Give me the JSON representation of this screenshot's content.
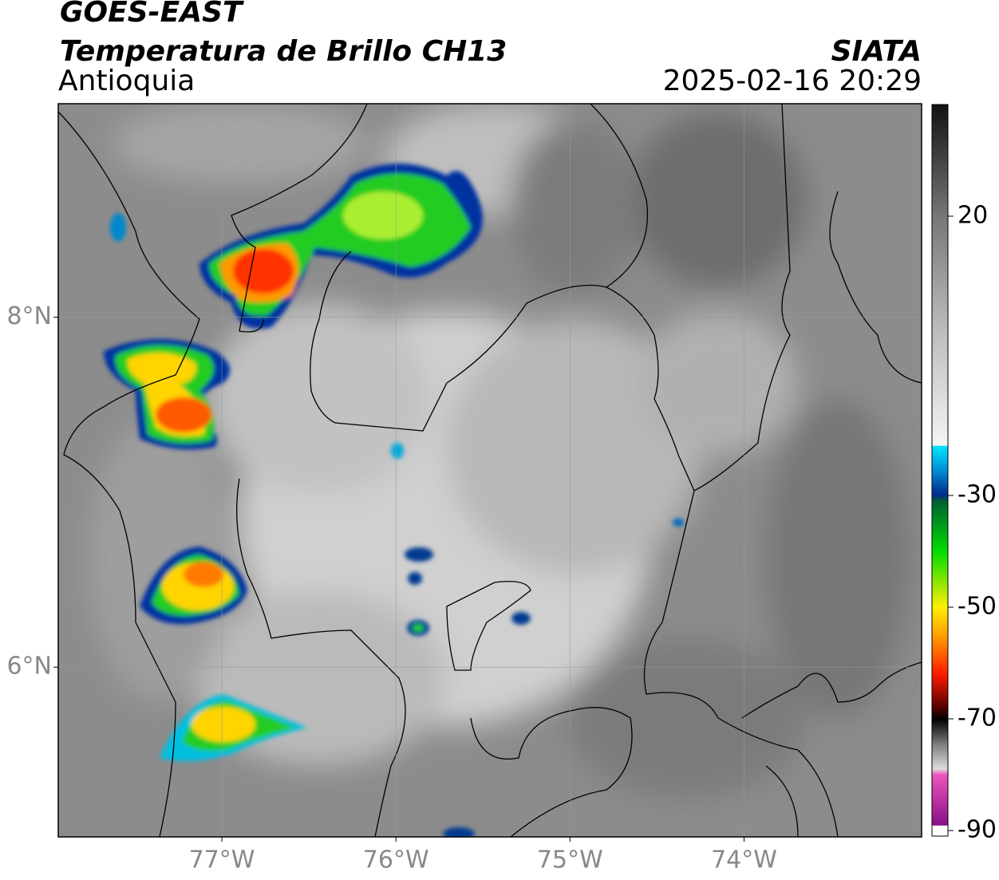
{
  "header": {
    "title": "GOES-EAST",
    "subtitle": "Temperatura de Brillo CH13",
    "region": "Antioquia",
    "source": "SIATA",
    "datetime": "2025-02-16 20:29"
  },
  "map": {
    "xlim": [
      -77.94,
      -72.98
    ],
    "ylim": [
      5.03,
      9.22
    ],
    "xticks": [
      {
        "value": -77,
        "label": "77°W"
      },
      {
        "value": -76,
        "label": "76°W"
      },
      {
        "value": -75,
        "label": "75°W"
      },
      {
        "value": -74,
        "label": "74°W"
      }
    ],
    "yticks": [
      {
        "value": 8,
        "label": "8°N"
      },
      {
        "value": 6,
        "label": "6°N"
      }
    ],
    "grid": true
  },
  "colorbar": {
    "lim": [
      -91,
      40
    ],
    "ticks": [
      20,
      -30,
      -50,
      -70,
      -90
    ]
  }
}
